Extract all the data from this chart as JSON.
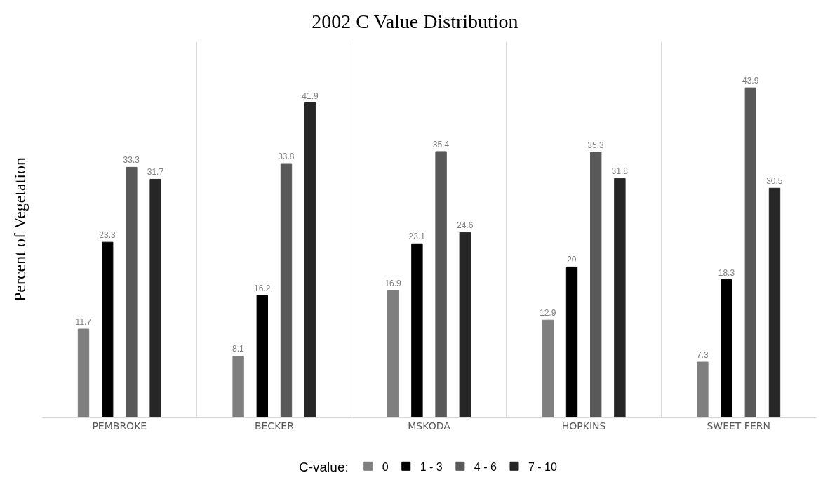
{
  "chart_data": {
    "type": "bar",
    "title": "2002 C Value Distribution",
    "ylabel": "Percent of Vegetation",
    "legend_title": "C-value:",
    "categories": [
      "PEMBROKE",
      "BECKER",
      "MSKODA",
      "HOPKINS",
      "SWEET FERN"
    ],
    "series": [
      {
        "name": "0",
        "color": "#7f7f7f",
        "values": [
          11.7,
          8.1,
          16.9,
          12.9,
          7.3
        ]
      },
      {
        "name": "1 - 3",
        "color": "#000000",
        "values": [
          23.3,
          16.2,
          23.1,
          20,
          18.3
        ]
      },
      {
        "name": "4 - 6",
        "color": "#595959",
        "values": [
          33.3,
          33.8,
          35.4,
          35.3,
          43.9
        ]
      },
      {
        "name": "7 - 10",
        "color": "#262626",
        "values": [
          31.7,
          41.9,
          24.6,
          31.8,
          30.5
        ]
      }
    ],
    "ylim": [
      0,
      50
    ],
    "data_labels": true,
    "grid": "x",
    "legend": "bottom"
  }
}
